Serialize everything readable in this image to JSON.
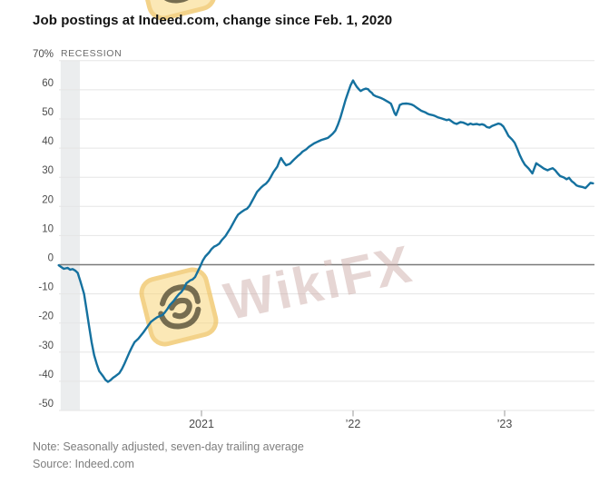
{
  "header": {
    "title": "Job postings at Indeed.com, change since Feb. 1, 2020"
  },
  "chart_data": {
    "type": "line",
    "title": "Job postings at Indeed.com, change since Feb. 1, 2020",
    "xlabel": "",
    "ylabel": "",
    "x_unit": "months since Feb 1, 2020",
    "ylim": [
      -50,
      70
    ],
    "grid": "horizontal",
    "legend": "none",
    "baseline_value": 0,
    "recession_label": "RECESSION",
    "recession_band_months": [
      -0.15,
      1.37
    ],
    "y_ticks": [
      {
        "v": 70,
        "label": "70%"
      },
      {
        "v": 60,
        "label": "60"
      },
      {
        "v": 50,
        "label": "50"
      },
      {
        "v": 40,
        "label": "40"
      },
      {
        "v": 30,
        "label": "30"
      },
      {
        "v": 20,
        "label": "20"
      },
      {
        "v": 10,
        "label": "10"
      },
      {
        "v": 0,
        "label": "0"
      },
      {
        "v": -10,
        "label": "-10"
      },
      {
        "v": -20,
        "label": "-20"
      },
      {
        "v": -30,
        "label": "-30"
      },
      {
        "v": -40,
        "label": "-40"
      },
      {
        "v": -50,
        "label": "-50"
      }
    ],
    "x_ticks": [
      {
        "m": 11,
        "label": "2021"
      },
      {
        "m": 23,
        "label": "’22"
      },
      {
        "m": 35,
        "label": "’23"
      }
    ],
    "colors": {
      "line": "#15719f",
      "gridline": "#e5e5e5",
      "zero_line": "#7a7a7a",
      "tick": "#999999",
      "recession_band": "#ebedee",
      "axis_text": "#4b4b4b",
      "recession_text": "#6b6b6b"
    },
    "series": [
      {
        "name": "Job postings, change since Feb. 1, 2020 (%)",
        "color": "#15719f",
        "points": [
          [
            -0.3,
            -0.2
          ],
          [
            -0.1,
            -0.8
          ],
          [
            0.1,
            -1.4
          ],
          [
            0.4,
            -1.1
          ],
          [
            0.6,
            -1.7
          ],
          [
            0.8,
            -1.5
          ],
          [
            1,
            -2
          ],
          [
            1.2,
            -2.8
          ],
          [
            1.4,
            -5.5
          ],
          [
            1.7,
            -10
          ],
          [
            1.9,
            -15.5
          ],
          [
            2.1,
            -21
          ],
          [
            2.3,
            -26.5
          ],
          [
            2.5,
            -31
          ],
          [
            2.7,
            -34
          ],
          [
            2.9,
            -36.5
          ],
          [
            3.2,
            -38.2
          ],
          [
            3.4,
            -39.5
          ],
          [
            3.6,
            -40.2
          ],
          [
            3.8,
            -39.6
          ],
          [
            4,
            -38.8
          ],
          [
            4.2,
            -38.2
          ],
          [
            4.5,
            -37.2
          ],
          [
            4.7,
            -35.8
          ],
          [
            4.9,
            -34
          ],
          [
            5.1,
            -32
          ],
          [
            5.3,
            -30
          ],
          [
            5.5,
            -28.2
          ],
          [
            5.7,
            -26.6
          ],
          [
            6,
            -25.4
          ],
          [
            6.2,
            -24.3
          ],
          [
            6.4,
            -23.2
          ],
          [
            6.6,
            -22
          ],
          [
            6.8,
            -20.8
          ],
          [
            7,
            -19.6
          ],
          [
            7.3,
            -18.6
          ],
          [
            7.5,
            -18
          ],
          [
            7.7,
            -17.6
          ],
          [
            7.9,
            -17.3
          ],
          [
            8.1,
            -16.4
          ],
          [
            8.3,
            -15.2
          ],
          [
            8.5,
            -13.8
          ],
          [
            8.8,
            -12.4
          ],
          [
            9,
            -11.2
          ],
          [
            9.2,
            -10.2
          ],
          [
            9.4,
            -9.4
          ],
          [
            9.6,
            -8.2
          ],
          [
            9.8,
            -6.4
          ],
          [
            10.1,
            -5.4
          ],
          [
            10.3,
            -5
          ],
          [
            10.5,
            -4.2
          ],
          [
            10.7,
            -2.4
          ],
          [
            10.9,
            -0.6
          ],
          [
            11.1,
            1.4
          ],
          [
            11.3,
            2.8
          ],
          [
            11.6,
            4.2
          ],
          [
            11.8,
            5.4
          ],
          [
            12,
            6.2
          ],
          [
            12.2,
            6.6
          ],
          [
            12.4,
            7.2
          ],
          [
            12.6,
            8.4
          ],
          [
            12.9,
            9.8
          ],
          [
            13.1,
            11.2
          ],
          [
            13.3,
            12.6
          ],
          [
            13.5,
            14.2
          ],
          [
            13.7,
            15.8
          ],
          [
            13.9,
            17.2
          ],
          [
            14.2,
            18.2
          ],
          [
            14.4,
            18.8
          ],
          [
            14.6,
            19.2
          ],
          [
            14.8,
            20.2
          ],
          [
            15,
            21.8
          ],
          [
            15.2,
            23.4
          ],
          [
            15.4,
            25
          ],
          [
            15.7,
            26.4
          ],
          [
            15.9,
            27.2
          ],
          [
            16.1,
            27.8
          ],
          [
            16.3,
            28.8
          ],
          [
            16.5,
            30.2
          ],
          [
            16.7,
            31.8
          ],
          [
            17,
            33.6
          ],
          [
            17.2,
            35.8
          ],
          [
            17.3,
            36.6
          ],
          [
            17.5,
            35.2
          ],
          [
            17.7,
            34.1
          ],
          [
            18,
            34.6
          ],
          [
            18.2,
            35.5
          ],
          [
            18.4,
            36.4
          ],
          [
            18.6,
            37.2
          ],
          [
            18.8,
            37.9
          ],
          [
            19,
            38.8
          ],
          [
            19.3,
            39.6
          ],
          [
            19.5,
            40.4
          ],
          [
            19.7,
            41
          ],
          [
            19.9,
            41.6
          ],
          [
            20.1,
            42
          ],
          [
            20.3,
            42.4
          ],
          [
            20.5,
            42.8
          ],
          [
            20.8,
            43.2
          ],
          [
            21,
            43.5
          ],
          [
            21.2,
            44.2
          ],
          [
            21.4,
            45
          ],
          [
            21.6,
            46
          ],
          [
            21.8,
            48
          ],
          [
            22,
            50.5
          ],
          [
            22.2,
            53.5
          ],
          [
            22.4,
            56.5
          ],
          [
            22.6,
            59
          ],
          [
            22.8,
            61.5
          ],
          [
            23,
            63.2
          ],
          [
            23.1,
            62.4
          ],
          [
            23.3,
            61
          ],
          [
            23.5,
            60
          ],
          [
            23.6,
            59.6
          ],
          [
            23.8,
            60.1
          ],
          [
            24,
            60.4
          ],
          [
            24.2,
            60.2
          ],
          [
            24.3,
            59.6
          ],
          [
            24.5,
            58.9
          ],
          [
            24.6,
            58.3
          ],
          [
            24.8,
            57.8
          ],
          [
            25,
            57.5
          ],
          [
            25.2,
            57.2
          ],
          [
            25.4,
            56.8
          ],
          [
            25.6,
            56.3
          ],
          [
            25.8,
            55.8
          ],
          [
            26,
            55.2
          ],
          [
            26.1,
            54.2
          ],
          [
            26.3,
            51.9
          ],
          [
            26.4,
            51.3
          ],
          [
            26.6,
            53.5
          ],
          [
            26.7,
            54.8
          ],
          [
            26.9,
            55.2
          ],
          [
            27.2,
            55.3
          ],
          [
            27.4,
            55.2
          ],
          [
            27.6,
            55
          ],
          [
            27.8,
            54.6
          ],
          [
            28,
            54
          ],
          [
            28.2,
            53.4
          ],
          [
            28.4,
            52.8
          ],
          [
            28.7,
            52.3
          ],
          [
            28.9,
            51.8
          ],
          [
            29.1,
            51.5
          ],
          [
            29.3,
            51.3
          ],
          [
            29.5,
            51
          ],
          [
            29.7,
            50.6
          ],
          [
            30,
            50.2
          ],
          [
            30.2,
            49.9
          ],
          [
            30.4,
            49.6
          ],
          [
            30.6,
            49.8
          ],
          [
            30.8,
            49.2
          ],
          [
            31,
            48.6
          ],
          [
            31.2,
            48.3
          ],
          [
            31.5,
            48.9
          ],
          [
            31.7,
            48.8
          ],
          [
            31.9,
            48.4
          ],
          [
            32.1,
            48
          ],
          [
            32.3,
            48.4
          ],
          [
            32.5,
            48.1
          ],
          [
            32.8,
            48.3
          ],
          [
            33,
            48
          ],
          [
            33.2,
            48.2
          ],
          [
            33.4,
            47.9
          ],
          [
            33.6,
            47.2
          ],
          [
            33.8,
            47
          ],
          [
            34,
            47.6
          ],
          [
            34.3,
            48.1
          ],
          [
            34.5,
            48.4
          ],
          [
            34.7,
            48.2
          ],
          [
            34.9,
            47.4
          ],
          [
            35.1,
            45.9
          ],
          [
            35.3,
            44.2
          ],
          [
            35.6,
            42.9
          ],
          [
            35.8,
            41.8
          ],
          [
            36,
            39.8
          ],
          [
            36.2,
            37.6
          ],
          [
            36.4,
            35.8
          ],
          [
            36.6,
            34.3
          ],
          [
            36.9,
            33
          ],
          [
            37.1,
            31.9
          ],
          [
            37.2,
            31.3
          ],
          [
            37.4,
            33.6
          ],
          [
            37.5,
            34.8
          ],
          [
            37.7,
            34.2
          ],
          [
            37.9,
            33.6
          ],
          [
            38.1,
            33
          ],
          [
            38.4,
            32.4
          ],
          [
            38.6,
            32.8
          ],
          [
            38.8,
            33.1
          ],
          [
            39,
            32.4
          ],
          [
            39.2,
            31.3
          ],
          [
            39.4,
            30.4
          ],
          [
            39.7,
            29.9
          ],
          [
            39.9,
            29.3
          ],
          [
            40.1,
            29.8
          ],
          [
            40.3,
            28.7
          ],
          [
            40.5,
            28
          ],
          [
            40.7,
            27.2
          ],
          [
            40.9,
            26.9
          ],
          [
            41.2,
            26.6
          ],
          [
            41.4,
            26.3
          ],
          [
            41.6,
            27.2
          ],
          [
            41.8,
            28.1
          ],
          [
            42,
            27.9
          ]
        ]
      }
    ]
  },
  "watermark": {
    "text": "WikiFX",
    "logo": "wikifx-swirl-logo"
  },
  "footer": {
    "note": "Note: Seasonally adjusted, seven-day trailing average",
    "source": "Source: Indeed.com"
  }
}
